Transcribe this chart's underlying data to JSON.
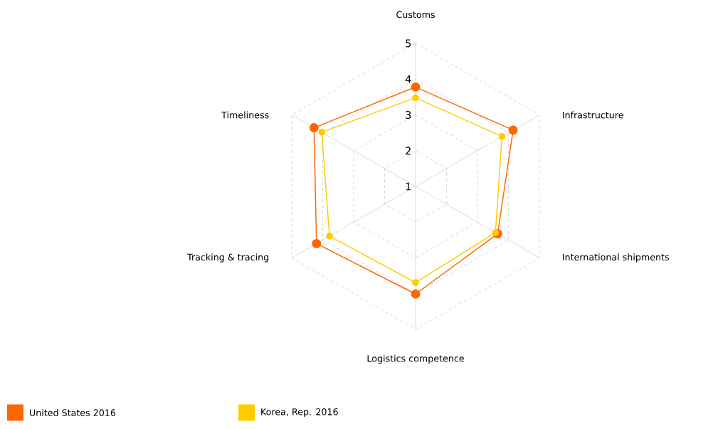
{
  "chart_data": {
    "type": "radar",
    "categories": [
      "Customs",
      "Infrastructure",
      "International shipments",
      "Logistics competence",
      "Tracking & tracing",
      "Timeliness"
    ],
    "series": [
      {
        "name": "United States 2016",
        "color": "#ff6600",
        "values": [
          3.78,
          4.15,
          3.65,
          4.01,
          4.2,
          4.28
        ]
      },
      {
        "name": "Korea, Rep. 2016",
        "color": "#ffcc00",
        "values": [
          3.48,
          3.79,
          3.58,
          3.69,
          3.78,
          4.03
        ]
      }
    ],
    "ylim": [
      1,
      5
    ],
    "yticks": [
      1,
      2,
      3,
      4,
      5
    ],
    "grid": true,
    "legend": "bottom left",
    "marker": "circle",
    "line_style": "solid"
  }
}
